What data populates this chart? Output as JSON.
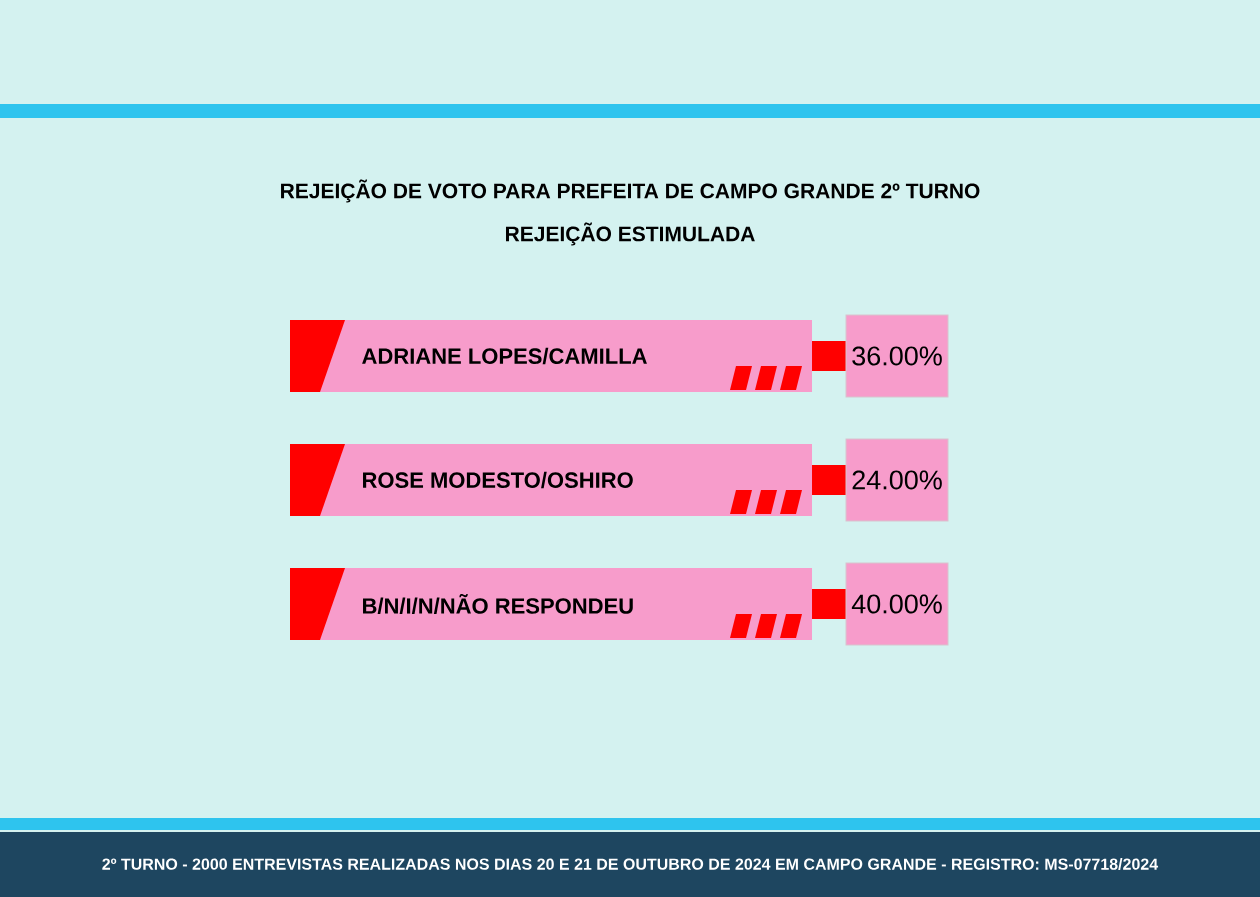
{
  "chart_data": {
    "type": "other",
    "title": "REJEIÇÃO DE VOTO PARA PREFEITA DE CAMPO GRANDE 2º TURNO",
    "subtitle": "REJEIÇÃO ESTIMULADA",
    "categories": [
      "ADRIANE LOPES/CAMILLA",
      "ROSE MODESTO/OSHIRO",
      "B/N/I/N/NÃO RESPONDEU"
    ],
    "values": [
      36,
      24,
      40
    ],
    "value_labels": [
      "36.00%",
      "24.00%",
      "40.00%"
    ],
    "annotations": [
      "2º TURNO - 2000 ENTREVISTAS REALIZADAS NOS DIAS 20 E 21 DE OUTUBRO DE 2024 EM CAMPO GRANDE - REGISTRO: MS-07718/2024"
    ]
  }
}
